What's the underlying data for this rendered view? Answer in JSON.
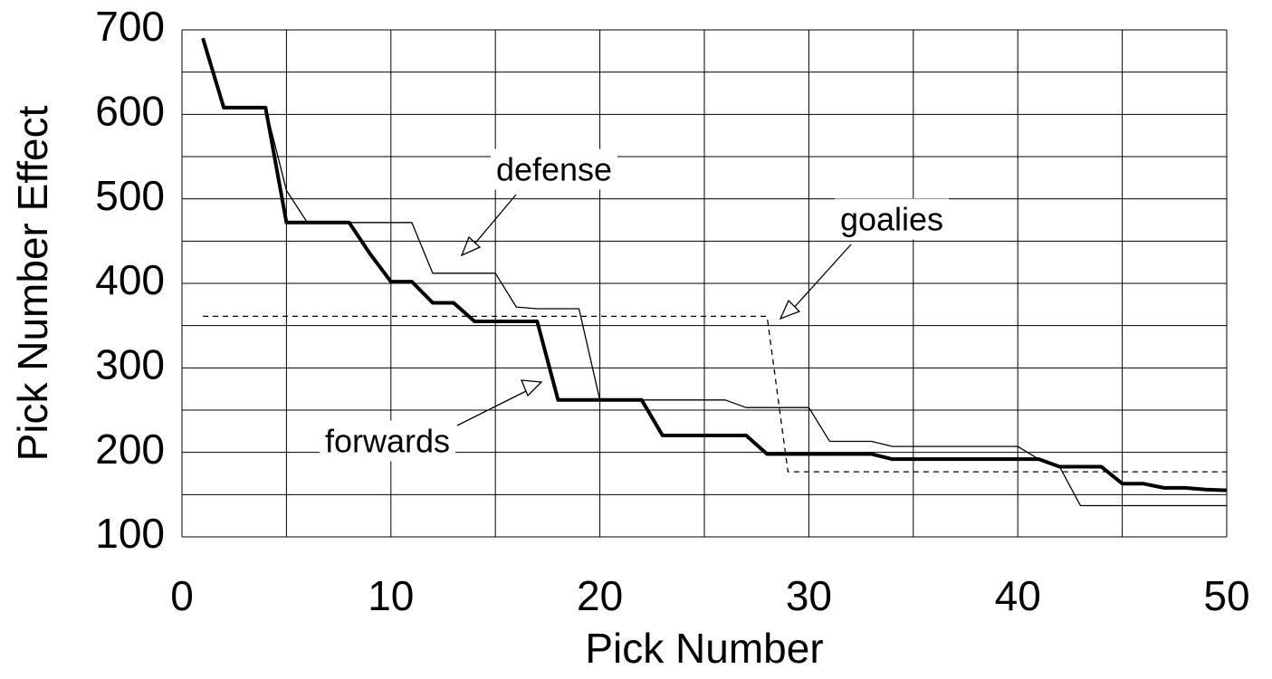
{
  "chart_data": {
    "type": "line",
    "xlabel": "Pick Number",
    "ylabel": "Pick Number Effect",
    "xlim": [
      0,
      50
    ],
    "ylim": [
      100,
      700
    ],
    "xticks": [
      0,
      10,
      20,
      30,
      40,
      50
    ],
    "yticks": [
      100,
      200,
      300,
      400,
      500,
      600,
      700
    ],
    "x_grid_lines": [
      0,
      5,
      10,
      15,
      20,
      25,
      30,
      35,
      40,
      45,
      50
    ],
    "y_grid_lines": [
      100,
      150,
      200,
      250,
      300,
      350,
      400,
      450,
      500,
      550,
      600,
      650,
      700
    ],
    "grid": true,
    "x": [
      1,
      2,
      3,
      4,
      5,
      6,
      7,
      8,
      9,
      10,
      11,
      12,
      13,
      14,
      15,
      16,
      17,
      18,
      19,
      20,
      21,
      22,
      23,
      24,
      25,
      26,
      27,
      28,
      29,
      30,
      31,
      32,
      33,
      34,
      35,
      36,
      37,
      38,
      39,
      40,
      41,
      42,
      43,
      44,
      45,
      46,
      47,
      48,
      49,
      50
    ],
    "series": [
      {
        "name": "forwards",
        "color": "#000000",
        "width": 4,
        "dash": "none",
        "values": [
          690,
          608,
          608,
          608,
          472,
          472,
          472,
          472,
          435,
          402,
          402,
          377,
          377,
          355,
          355,
          355,
          355,
          262,
          262,
          262,
          262,
          262,
          220,
          220,
          220,
          220,
          220,
          198,
          198,
          198,
          198,
          198,
          198,
          192,
          192,
          192,
          192,
          192,
          192,
          192,
          192,
          183,
          183,
          183,
          163,
          163,
          158,
          158,
          156,
          155
        ]
      },
      {
        "name": "defense",
        "color": "#000000",
        "width": 1.3,
        "dash": "none",
        "values": [
          690,
          608,
          608,
          608,
          510,
          472,
          472,
          472,
          472,
          472,
          472,
          412,
          412,
          412,
          412,
          372,
          370,
          370,
          370,
          262,
          262,
          262,
          262,
          262,
          262,
          262,
          253,
          253,
          253,
          253,
          213,
          213,
          213,
          207,
          207,
          207,
          207,
          207,
          207,
          207,
          192,
          183,
          137,
          137,
          137,
          137,
          137,
          137,
          137,
          137
        ]
      },
      {
        "name": "goalies",
        "color": "#000000",
        "width": 1.3,
        "dash": "6,5",
        "values": [
          361,
          361,
          361,
          361,
          361,
          361,
          361,
          361,
          361,
          361,
          361,
          361,
          361,
          361,
          361,
          361,
          361,
          361,
          361,
          361,
          361,
          361,
          361,
          361,
          361,
          361,
          361,
          361,
          177,
          177,
          177,
          177,
          177,
          177,
          177,
          177,
          177,
          177,
          177,
          177,
          177,
          177,
          177,
          177,
          177,
          177,
          177,
          177,
          177,
          177
        ]
      }
    ],
    "annotations": [
      "defense",
      "goalies",
      "forwards"
    ]
  }
}
